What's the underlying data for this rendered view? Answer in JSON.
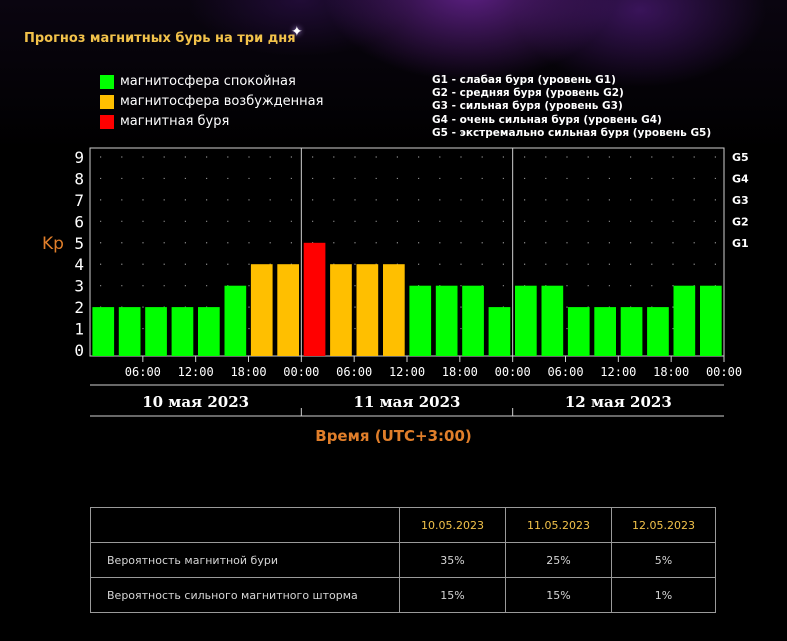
{
  "title": "Прогноз магнитных бурь на три дня",
  "legend": [
    {
      "label": "магнитосфера спокойная",
      "color": "#00ff00"
    },
    {
      "label": "магнитосфера возбужденная",
      "color": "#ffbf00"
    },
    {
      "label": "магнитная буря",
      "color": "#ff0000"
    }
  ],
  "g_levels_legend": [
    "G1 - слабая буря (уровень G1)",
    "G2 - средняя буря (уровень G2)",
    "G3 - сильная буря (уровень G3)",
    "G4 - очень сильная буря (уровень G4)",
    "G5 - экстремально сильная буря (уровень G5)"
  ],
  "chart_data": {
    "type": "bar",
    "ylabel": "Kp",
    "xlabel": "Время (UTC+3:00)",
    "ylim": [
      0,
      9
    ],
    "y_ticks": [
      "0",
      "1",
      "2",
      "3",
      "4",
      "5",
      "6",
      "7",
      "8",
      "9"
    ],
    "right_ticks": [
      {
        "value": 5,
        "label": "G1"
      },
      {
        "value": 6,
        "label": "G2"
      },
      {
        "value": 7,
        "label": "G3"
      },
      {
        "value": 8,
        "label": "G4"
      },
      {
        "value": 9,
        "label": "G5"
      }
    ],
    "x_tick_labels": [
      "06:00",
      "12:00",
      "18:00",
      "00:00",
      "06:00",
      "12:00",
      "18:00",
      "00:00",
      "06:00",
      "12:00",
      "18:00",
      "00:00"
    ],
    "days": [
      "10 мая 2023",
      "11 мая 2023",
      "12 мая 2023"
    ],
    "values": [
      2,
      2,
      2,
      2,
      2,
      3,
      4,
      4,
      5,
      4,
      4,
      4,
      3,
      3,
      3,
      2,
      3,
      3,
      2,
      2,
      2,
      2,
      3,
      3
    ],
    "colors": {
      "calm": "#00ff00",
      "excited": "#ffbf00",
      "storm": "#ff0000"
    },
    "grid": true
  },
  "probability_table": {
    "headers": [
      "",
      "10.05.2023",
      "11.05.2023",
      "12.05.2023"
    ],
    "rows": [
      {
        "label": "Вероятность магнитной бури",
        "values": [
          "35%",
          "25%",
          "5%"
        ]
      },
      {
        "label": "Вероятность сильного магнитного шторма",
        "values": [
          "15%",
          "15%",
          "1%"
        ]
      }
    ]
  }
}
